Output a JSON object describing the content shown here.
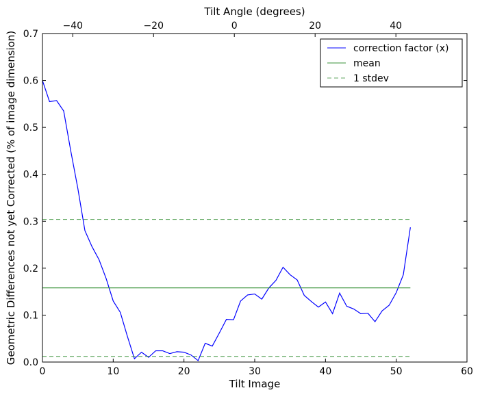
{
  "chart_data": {
    "type": "line",
    "xlabel": "Tilt Image",
    "ylabel": "Geometric Differences not yet Corrected (% of image dimension)",
    "top_xlabel": "Tilt Angle (degrees)",
    "xlim": [
      0,
      60
    ],
    "ylim": [
      0,
      0.7
    ],
    "top_xlim": [
      -47.5,
      57.6
    ],
    "xticks": [
      "0",
      "10",
      "20",
      "30",
      "40",
      "50",
      "60"
    ],
    "xtick_values": [
      0,
      10,
      20,
      30,
      40,
      50,
      60
    ],
    "yticks": [
      "0.0",
      "0.1",
      "0.2",
      "0.3",
      "0.4",
      "0.5",
      "0.6",
      "0.7"
    ],
    "ytick_values": [
      0,
      0.1,
      0.2,
      0.3,
      0.4,
      0.5,
      0.6,
      0.7
    ],
    "top_xticks": [
      "−40",
      "−20",
      "0",
      "20",
      "40"
    ],
    "top_xtick_values": [
      -40,
      -20,
      0,
      20,
      40
    ],
    "grid": false,
    "legend_placement": "top-right",
    "series": [
      {
        "name": "correction factor (x)",
        "color": "#0000ff",
        "style": "solid",
        "x": [
          0,
          1,
          2,
          3,
          4,
          5,
          6,
          7,
          8,
          9,
          10,
          11,
          12,
          13,
          14,
          15,
          16,
          17,
          18,
          19,
          20,
          21,
          22,
          23,
          24,
          25,
          26,
          27,
          28,
          29,
          30,
          31,
          32,
          33,
          34,
          35,
          36,
          37,
          38,
          39,
          40,
          41,
          42,
          43,
          44,
          45,
          46,
          47,
          48,
          49,
          50,
          51,
          52
        ],
        "values": [
          0.6,
          0.555,
          0.557,
          0.535,
          0.45,
          0.37,
          0.28,
          0.246,
          0.218,
          0.178,
          0.13,
          0.106,
          0.055,
          0.007,
          0.021,
          0.01,
          0.024,
          0.024,
          0.018,
          0.022,
          0.021,
          0.015,
          0.003,
          0.04,
          0.034,
          0.062,
          0.091,
          0.09,
          0.13,
          0.143,
          0.145,
          0.134,
          0.158,
          0.174,
          0.202,
          0.186,
          0.175,
          0.142,
          0.129,
          0.117,
          0.128,
          0.103,
          0.147,
          0.119,
          0.113,
          0.103,
          0.104,
          0.086,
          0.109,
          0.121,
          0.148,
          0.186,
          0.287
        ]
      },
      {
        "name": "mean",
        "color": "#3a923a",
        "style": "solid",
        "x": [
          0,
          52
        ],
        "values": [
          0.158,
          0.158
        ]
      },
      {
        "name": "1 stdev",
        "color": "#3a923a",
        "style": "dashed",
        "x": [
          0,
          52
        ],
        "values": [
          0.304,
          0.304
        ]
      },
      {
        "name": "1 stdev (lower)",
        "color": "#3a923a",
        "style": "dashed",
        "x": [
          0,
          52
        ],
        "values": [
          0.012,
          0.012
        ],
        "in_legend": false
      }
    ]
  }
}
